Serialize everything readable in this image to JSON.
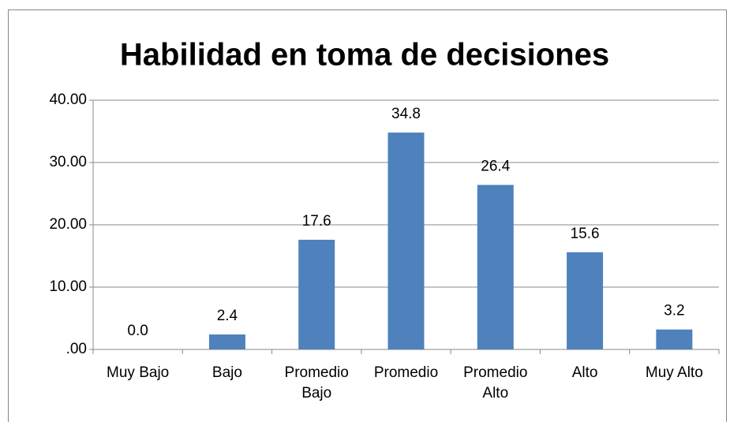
{
  "chart_data": {
    "type": "bar",
    "title": "Habilidad en toma de decisiones",
    "categories": [
      "Muy Bajo",
      "Bajo",
      "Promedio Bajo",
      "Promedio",
      "Promedio Alto",
      "Alto",
      "Muy Alto"
    ],
    "values": [
      0.0,
      2.4,
      17.6,
      34.8,
      26.4,
      15.6,
      3.2
    ],
    "value_labels": [
      "0.0",
      "2.4",
      "17.6",
      "34.8",
      "26.4",
      "15.6",
      "3.2"
    ],
    "color": "#4f81bd",
    "ylim": [
      0,
      40
    ],
    "yticks": [
      {
        "value": 0,
        "label": ".00"
      },
      {
        "value": 10,
        "label": "10.00"
      },
      {
        "value": 20,
        "label": "20.00"
      },
      {
        "value": 30,
        "label": "30.00"
      },
      {
        "value": 40,
        "label": "40.00"
      }
    ],
    "grid": true
  }
}
